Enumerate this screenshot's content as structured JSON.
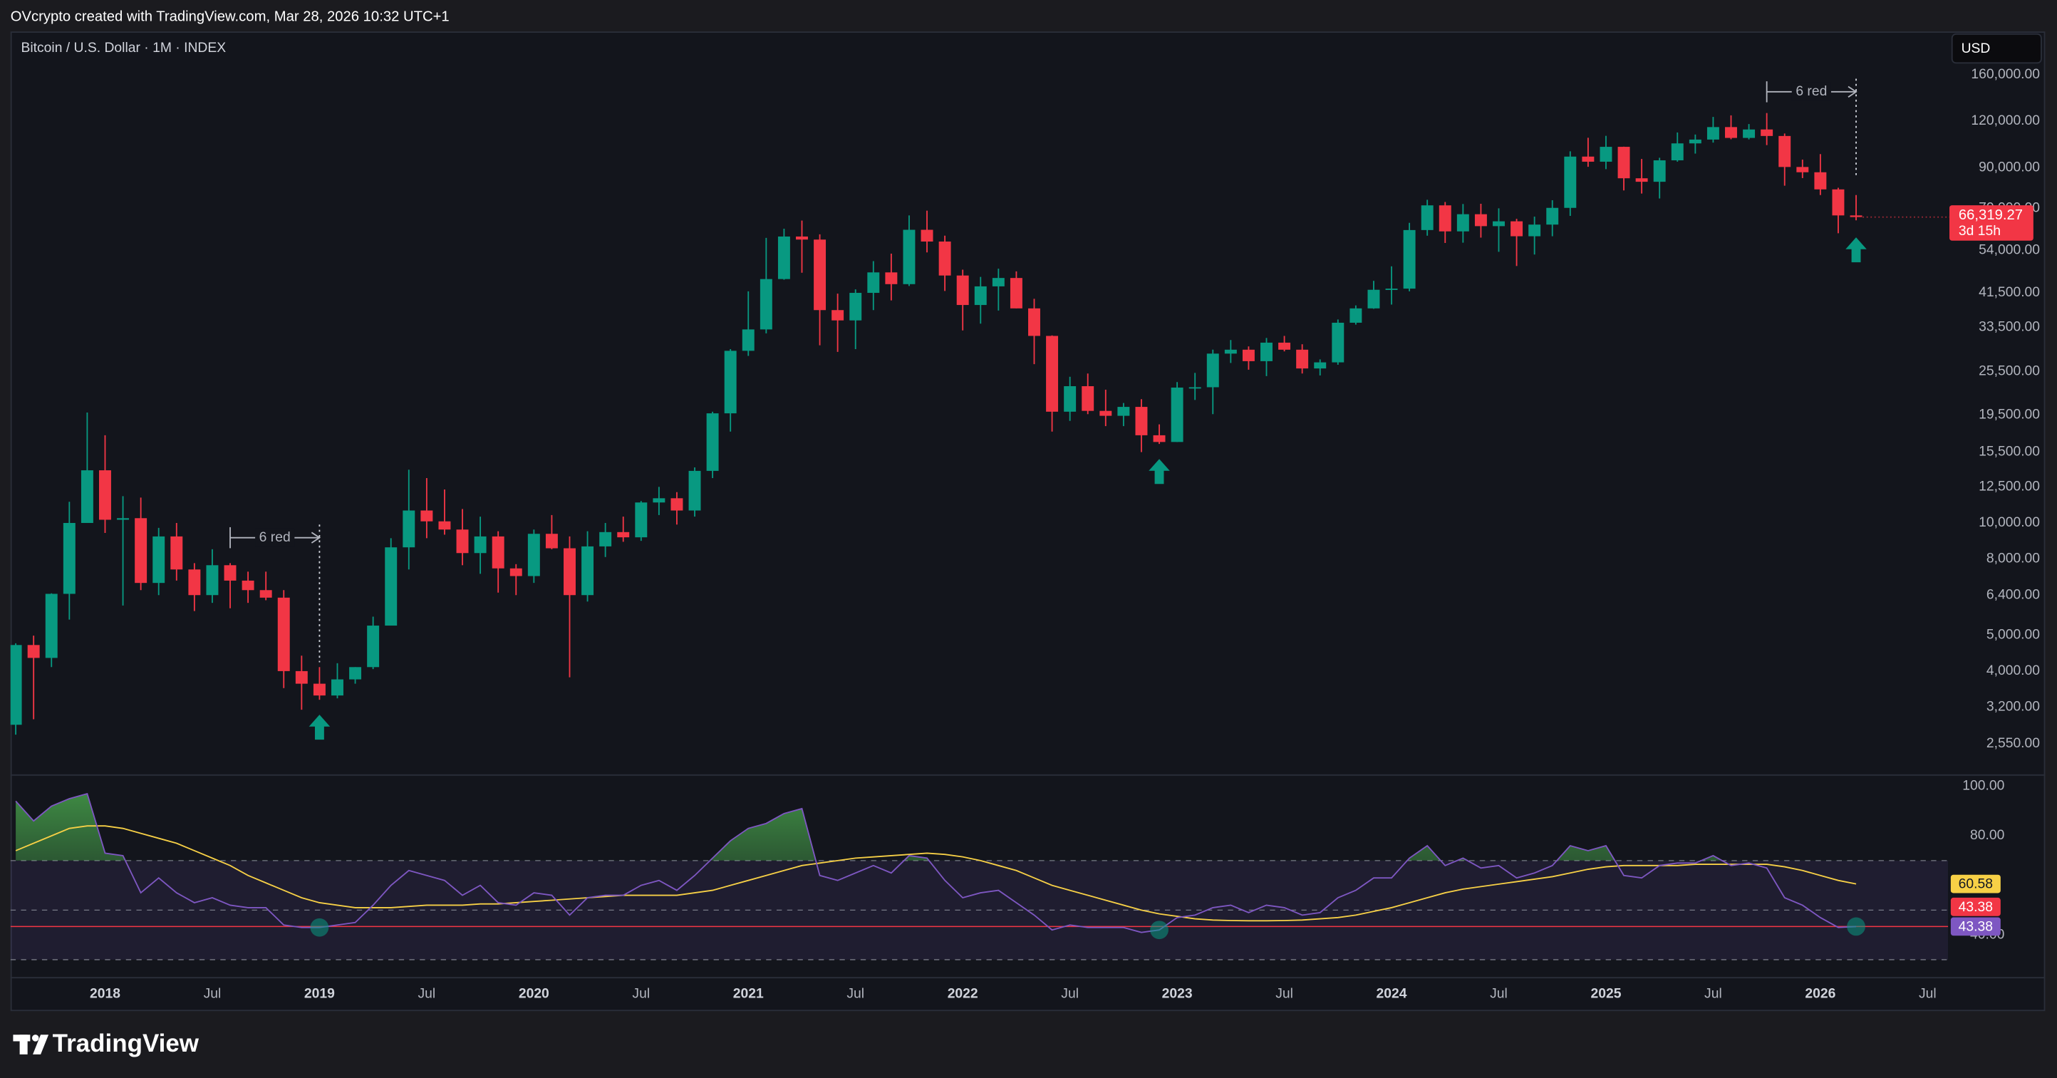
{
  "header": "OVcrypto created with TradingView.com, Mar 28, 2026 10:32 UTC+1",
  "currency": "USD",
  "footer": "TradingView",
  "chart_data": [
    {
      "type": "candlestick",
      "title": "Bitcoin / U.S. Dollar · 1M · INDEX",
      "categories": [
        null,
        null,
        null,
        null,
        null,
        "2018",
        null,
        null,
        null,
        null,
        null,
        "Jul",
        null,
        null,
        null,
        null,
        null,
        "2019",
        null,
        null,
        null,
        null,
        null,
        "Jul",
        null,
        null,
        null,
        null,
        null,
        "2020",
        null,
        null,
        null,
        null,
        null,
        "Jul",
        null,
        null,
        null,
        null,
        null,
        "2021",
        null,
        null,
        null,
        null,
        null,
        "Jul",
        null,
        null,
        null,
        null,
        null,
        "2022",
        null,
        null,
        null,
        null,
        null,
        "Jul",
        null,
        null,
        null,
        null,
        null,
        "2023",
        null,
        null,
        null,
        null,
        null,
        "Jul",
        null,
        null,
        null,
        null,
        null,
        "2024",
        null,
        null,
        null,
        null,
        null,
        "Jul",
        null,
        null,
        null,
        null,
        null,
        "2025",
        null,
        null,
        null,
        null,
        null,
        "Jul",
        null,
        null,
        null,
        null,
        null,
        "2026",
        null,
        null,
        null,
        null,
        null,
        "Jul",
        null
      ],
      "open": [
        2870,
        4700,
        4340,
        6450,
        10000,
        13850,
        10200,
        10300,
        6900,
        9200,
        7500,
        6400,
        7700,
        7000,
        6600,
        6300,
        4000,
        3700,
        3440,
        3800,
        4100,
        5300,
        8600,
        10800,
        10100,
        9600,
        8300,
        9200,
        7550,
        7200,
        9350,
        8550,
        6400,
        8650,
        9450,
        9150,
        11350,
        11650,
        10800,
        13800,
        19700,
        29000,
        33100,
        45200,
        58800,
        57700,
        37300,
        35000,
        41500,
        47100,
        43800,
        61300,
        57000,
        46200,
        38500,
        43200,
        45500,
        37700,
        31800,
        19900,
        23300,
        20000,
        19400,
        20500,
        17200,
        16500,
        23100,
        23150,
        28500,
        29200,
        27200,
        30500,
        29200,
        26000,
        27000,
        34500,
        37700,
        42300,
        42600,
        61200,
        71300,
        60700,
        67500,
        62700,
        64600,
        58900,
        63300,
        70200,
        96400,
        93400,
        102400,
        84300,
        82500,
        94200,
        104600,
        107100,
        115700,
        108200,
        114000,
        109500,
        90400,
        87500,
        78700,
        67000,
        null,
        null,
        null,
        null,
        null
      ],
      "high": [
        4750,
        4980,
        6470,
        11400,
        19800,
        17200,
        11800,
        11700,
        9700,
        10000,
        7800,
        8500,
        7800,
        7400,
        7400,
        6600,
        4400,
        4100,
        4200,
        4100,
        5600,
        9100,
        13900,
        13200,
        12300,
        10900,
        10400,
        9500,
        7750,
        9600,
        10500,
        9200,
        9500,
        10000,
        10400,
        11450,
        12500,
        12100,
        14100,
        19900,
        29300,
        41900,
        58300,
        61700,
        64900,
        59600,
        41300,
        42400,
        50500,
        52900,
        67000,
        69000,
        59100,
        47900,
        45800,
        48200,
        47400,
        40000,
        31900,
        24700,
        25200,
        22800,
        21000,
        21500,
        18400,
        23900,
        25300,
        29200,
        31000,
        29800,
        31400,
        31800,
        30200,
        27500,
        35200,
        38400,
        44700,
        48900,
        64000,
        73800,
        72800,
        71900,
        72000,
        70000,
        65600,
        66500,
        73600,
        99600,
        108300,
        109600,
        102500,
        95000,
        95700,
        111900,
        110500,
        123200,
        124400,
        117900,
        126200,
        111200,
        94600,
        97900,
        79500,
        76000,
        null,
        null,
        null,
        null,
        null
      ],
      "low": [
        2700,
        2970,
        4100,
        5500,
        10400,
        9400,
        6000,
        6600,
        6400,
        7000,
        5800,
        6100,
        5900,
        6100,
        6200,
        3600,
        3150,
        3350,
        3380,
        3700,
        4050,
        5300,
        7500,
        9100,
        9300,
        7700,
        7300,
        6500,
        6400,
        6900,
        8500,
        3850,
        6150,
        8100,
        8900,
        8950,
        10500,
        9900,
        10400,
        13200,
        17600,
        28100,
        32300,
        45000,
        47000,
        30000,
        28800,
        29300,
        37300,
        39600,
        43300,
        53300,
        42000,
        32900,
        34300,
        37200,
        37700,
        26700,
        17600,
        18800,
        19600,
        18200,
        18200,
        15500,
        16300,
        16500,
        21400,
        19600,
        26900,
        25800,
        24800,
        28900,
        25200,
        24900,
        26600,
        34100,
        37600,
        38600,
        41900,
        59100,
        56500,
        56600,
        58400,
        53500,
        49000,
        52600,
        58900,
        66800,
        90500,
        89200,
        78200,
        76700,
        74400,
        93400,
        98200,
        105100,
        107300,
        107200,
        103500,
        80500,
        84400,
        76000,
        60000,
        65000,
        null,
        null,
        null,
        null,
        null
      ],
      "close": [
        4700,
        4340,
        6450,
        10000,
        13850,
        10200,
        10300,
        6900,
        9200,
        7500,
        6400,
        7700,
        7000,
        6600,
        6300,
        4000,
        3700,
        3440,
        3800,
        4100,
        5300,
        8600,
        10800,
        10100,
        9600,
        8300,
        9200,
        7550,
        7200,
        9350,
        8550,
        6400,
        8650,
        9450,
        9150,
        11350,
        11650,
        10800,
        13800,
        19700,
        29000,
        33100,
        45200,
        58800,
        57700,
        37300,
        35000,
        41500,
        47100,
        43800,
        61300,
        57000,
        46200,
        38500,
        43200,
        45500,
        37700,
        31800,
        19900,
        23300,
        20000,
        19400,
        20500,
        17200,
        16500,
        23100,
        23150,
        28500,
        29200,
        27200,
        30500,
        29200,
        26000,
        27000,
        34500,
        37700,
        42300,
        42600,
        61200,
        71300,
        60700,
        67500,
        62700,
        64600,
        58900,
        63300,
        70200,
        96400,
        93400,
        102400,
        84300,
        82500,
        94200,
        104600,
        107100,
        115700,
        108200,
        114000,
        109500,
        90400,
        87500,
        78700,
        67000,
        66319.27,
        null,
        null,
        null,
        null,
        null
      ],
      "up_color": "#089981",
      "down_color": "#f23645",
      "last_label": "66,319.27",
      "countdown": "3d 15h",
      "log_scale": true,
      "grid": false,
      "ylim": [
        2120,
        209000
      ],
      "yticks": [
        {
          "value": 160000,
          "label": "160,000.00"
        },
        {
          "value": 120000,
          "label": "120,000.00"
        },
        {
          "value": 90000,
          "label": "90,000.00"
        },
        {
          "value": 70000,
          "label": "70,000.00"
        },
        {
          "value": 54000,
          "label": "54,000.00"
        },
        {
          "value": 41500,
          "label": "41,500.00"
        },
        {
          "value": 33500,
          "label": "33,500.00"
        },
        {
          "value": 25500,
          "label": "25,500.00"
        },
        {
          "value": 19500,
          "label": "19,500.00"
        },
        {
          "value": 15500,
          "label": "15,500.00"
        },
        {
          "value": 12500,
          "label": "12,500.00"
        },
        {
          "value": 10000,
          "label": "10,000.00"
        },
        {
          "value": 8000,
          "label": "8,000.00"
        },
        {
          "value": 6400,
          "label": "6,400.00"
        },
        {
          "value": 5000,
          "label": "5,000.00"
        },
        {
          "value": 4000,
          "label": "4,000.00"
        },
        {
          "value": 3200,
          "label": "3,200.00"
        },
        {
          "value": 2550,
          "label": "2,550.00"
        }
      ],
      "annotations": [
        {
          "text": "6 red"
        },
        {
          "text": "6 red"
        }
      ]
    },
    {
      "type": "line",
      "ylim": [
        23,
        104
      ],
      "yticks": [
        {
          "value": 100,
          "label": "100.00"
        },
        {
          "value": 80,
          "label": "80.00"
        },
        {
          "value": 40,
          "label": "40.00"
        }
      ],
      "bands": [
        30,
        70
      ],
      "midline": 50,
      "hline": {
        "value": 43.38,
        "label": "43.38",
        "color": "#f23645"
      },
      "series": [
        {
          "color": "#7e57c2",
          "last_label": "43.38",
          "values": [
            94,
            86,
            92,
            95,
            97,
            73,
            72,
            57,
            63,
            57,
            53,
            55,
            52,
            51,
            51,
            44,
            43,
            43,
            44,
            45,
            52,
            60,
            66,
            64,
            62,
            56,
            60,
            53,
            52,
            57,
            56,
            48,
            55,
            56,
            56,
            60,
            62,
            58,
            64,
            71,
            78,
            83,
            85,
            89,
            91,
            64,
            62,
            65,
            68,
            65,
            72,
            71,
            62,
            55,
            57,
            58,
            53,
            48,
            42,
            44,
            43,
            43,
            43,
            41,
            42,
            47,
            48,
            51,
            52,
            49,
            52,
            51,
            48,
            49,
            55,
            58,
            63,
            63,
            71,
            76,
            68,
            71,
            67,
            68,
            63,
            65,
            68,
            76,
            74,
            76,
            64,
            63,
            68,
            69,
            69,
            72,
            68,
            69,
            67,
            55,
            52,
            47,
            43,
            43.38,
            null,
            null,
            null,
            null,
            null
          ]
        },
        {
          "color": "#f7d046",
          "last_label": "60.58",
          "values": [
            74,
            77,
            80,
            83,
            84,
            84,
            83,
            81,
            79,
            77,
            74,
            71,
            68,
            64,
            61,
            58,
            55,
            53,
            52,
            51,
            51,
            51,
            51.5,
            52,
            52,
            52,
            52.5,
            52.5,
            53,
            53.5,
            54,
            54.5,
            55,
            55.5,
            56,
            56,
            56,
            56,
            57,
            58,
            60,
            62,
            64,
            66,
            68,
            69,
            70,
            71,
            71.5,
            72,
            72.5,
            73,
            72.5,
            71.5,
            70,
            68,
            66,
            63,
            60,
            58,
            56,
            54,
            52,
            50,
            48.5,
            47.5,
            46.5,
            46,
            45.8,
            45.7,
            45.7,
            45.8,
            46,
            46.5,
            47,
            48,
            49.5,
            51,
            53,
            55,
            57,
            58.5,
            59.5,
            60.5,
            61.5,
            62.5,
            63.5,
            65,
            66.5,
            67.5,
            68,
            68,
            68,
            68,
            68.5,
            68.5,
            68.5,
            68.5,
            68.5,
            67.5,
            66,
            64,
            62,
            60.58,
            null,
            null,
            null,
            null,
            null
          ]
        }
      ]
    }
  ]
}
